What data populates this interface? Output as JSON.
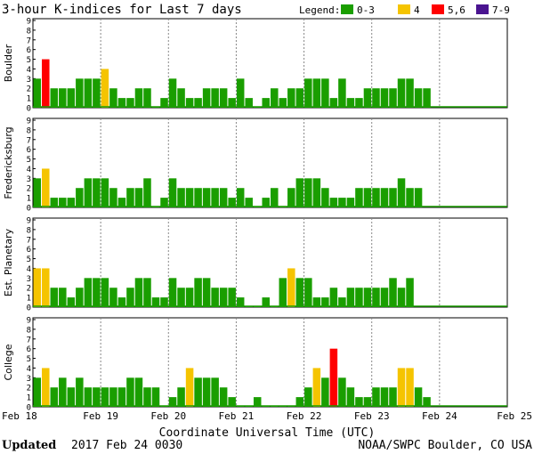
{
  "title": "3-hour K-indices for Last 7 days",
  "legend": {
    "label": "Legend:",
    "items": [
      {
        "label": "0-3",
        "color": "#1a9e00"
      },
      {
        "label": "4",
        "color": "#f5c400"
      },
      {
        "label": "5,6",
        "color": "#ff0000"
      },
      {
        "label": "7-9",
        "color": "#4a1490"
      }
    ]
  },
  "footer": {
    "updated_label": "Updated",
    "updated_value": "2017 Feb 24 0030",
    "credit": "NOAA/SWPC Boulder, CO USA"
  },
  "chart_data": [
    {
      "type": "bar",
      "ylabel": "Boulder",
      "ylim": [
        0,
        9
      ],
      "x_ticks": [
        "Feb 18",
        "Feb 19",
        "Feb 20",
        "Feb 21",
        "Feb 22",
        "Feb 23",
        "Feb 24",
        "Feb 25"
      ],
      "values": [
        3,
        5,
        2,
        2,
        2,
        3,
        3,
        3,
        4,
        2,
        1,
        1,
        2,
        2,
        0,
        1,
        3,
        2,
        1,
        1,
        2,
        2,
        2,
        1,
        3,
        1,
        0,
        1,
        2,
        1,
        2,
        2,
        3,
        3,
        3,
        1,
        3,
        1,
        1,
        2,
        2,
        2,
        2,
        3,
        3,
        2,
        2
      ]
    },
    {
      "type": "bar",
      "ylabel": "Fredericksburg",
      "ylim": [
        0,
        9
      ],
      "x_ticks": [
        "Feb 18",
        "Feb 19",
        "Feb 20",
        "Feb 21",
        "Feb 22",
        "Feb 23",
        "Feb 24",
        "Feb 25"
      ],
      "values": [
        3,
        4,
        1,
        1,
        1,
        2,
        3,
        3,
        3,
        2,
        1,
        2,
        2,
        3,
        0,
        1,
        3,
        2,
        2,
        2,
        2,
        2,
        2,
        1,
        2,
        1,
        0,
        1,
        2,
        0,
        2,
        3,
        3,
        3,
        2,
        1,
        1,
        1,
        2,
        2,
        2,
        2,
        2,
        3,
        2,
        2
      ]
    },
    {
      "type": "bar",
      "ylabel": "Est. Planetary",
      "ylim": [
        0,
        9
      ],
      "x_ticks": [
        "Feb 18",
        "Feb 19",
        "Feb 20",
        "Feb 21",
        "Feb 22",
        "Feb 23",
        "Feb 24",
        "Feb 25"
      ],
      "values": [
        4,
        4,
        2,
        2,
        1,
        2,
        3,
        3,
        3,
        2,
        1,
        2,
        3,
        3,
        1,
        1,
        3,
        2,
        2,
        3,
        3,
        2,
        2,
        2,
        1,
        0,
        0,
        1,
        0,
        3,
        4,
        3,
        3,
        1,
        1,
        2,
        1,
        2,
        2,
        2,
        2,
        2,
        3,
        2,
        3
      ]
    },
    {
      "type": "bar",
      "ylabel": "College",
      "ylim": [
        0,
        9
      ],
      "x_ticks": [
        "Feb 18",
        "Feb 19",
        "Feb 20",
        "Feb 21",
        "Feb 22",
        "Feb 23",
        "Feb 24",
        "Feb 25"
      ],
      "values": [
        3,
        4,
        2,
        3,
        2,
        3,
        2,
        2,
        2,
        2,
        2,
        3,
        3,
        2,
        2,
        0,
        1,
        2,
        4,
        3,
        3,
        3,
        2,
        1,
        0,
        0,
        1,
        0,
        0,
        0,
        0,
        1,
        2,
        4,
        3,
        6,
        3,
        2,
        1,
        1,
        2,
        2,
        2,
        4,
        4,
        2,
        1
      ]
    }
  ],
  "xlabel": "Coordinate Universal Time (UTC)"
}
